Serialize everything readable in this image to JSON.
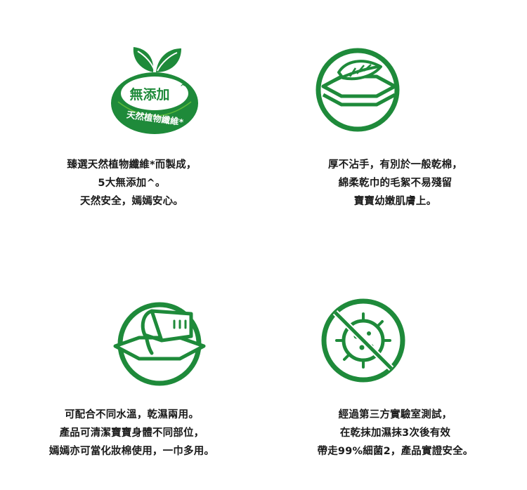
{
  "colors": {
    "green": "#1e8a3a",
    "green_dark": "#17702e",
    "leaf_light": "#5dbb3a",
    "text": "#1a1a1a"
  },
  "items": [
    {
      "icon": "no-additive-leaf-badge-icon",
      "badge_main": "無添加",
      "badge_main_mark": "^",
      "badge_arc": "天然植物纖維*",
      "lines": [
        "臻選天然植物纖維*而製成，",
        "5大無添加^。",
        "天然安全，嫣嫣安心。"
      ]
    },
    {
      "icon": "soft-feather-icon",
      "lines": [
        "厚不沾手，有別於一般乾棉，",
        "綿柔乾巾的毛絮不易殘留",
        "寶寶幼嫩肌膚上。"
      ]
    },
    {
      "icon": "wet-dry-towel-icon",
      "lines": [
        "可配合不同水溫，乾濕兩用。",
        "產品可清潔寶寶身體不同部位，",
        "嫣嫣亦可當化妝棉使用，一巾多用。"
      ]
    },
    {
      "icon": "no-bacteria-icon",
      "lines": [
        "經過第三方實驗室測試，",
        "在乾抹加濕抹3次後有效",
        "帶走99%細菌2，產品實證安全。"
      ]
    }
  ]
}
